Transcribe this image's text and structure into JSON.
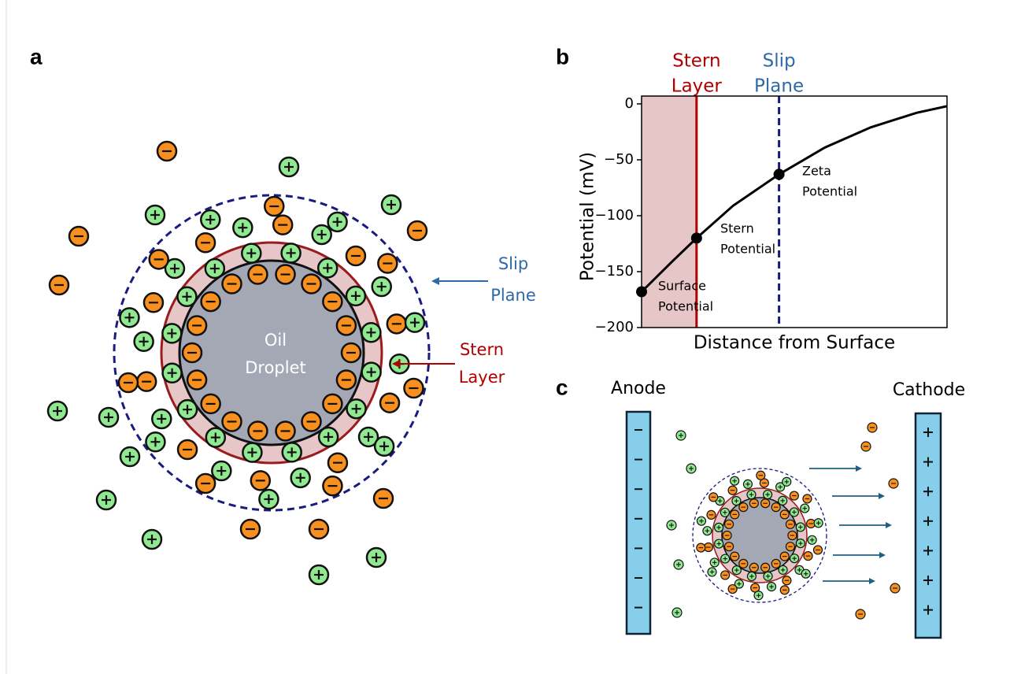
{
  "panel_a": {
    "label": "a",
    "droplet": [
      "Oil",
      "Droplet"
    ],
    "slip_plane": [
      "Slip",
      "Plane"
    ],
    "stern_layer": [
      "Stern",
      "Layer"
    ]
  },
  "panel_b": {
    "label": "b",
    "chart_data": {
      "type": "line",
      "x_label": "Distance from Surface",
      "y_label": "Potential (mV)",
      "xlim": [
        0,
        10
      ],
      "ylim": [
        -200,
        7
      ],
      "yticks": [
        0,
        {
          "value": -50,
          "label": "−50"
        },
        {
          "value": -100,
          "label": "−100"
        },
        {
          "value": -150,
          "label": "−150"
        },
        {
          "value": -200,
          "label": "−200"
        }
      ],
      "x": [
        0,
        1,
        1.8,
        3,
        4.5,
        6,
        7.5,
        9,
        10
      ],
      "values": [
        -168,
        -141,
        -120,
        -91,
        -63,
        -39,
        -21,
        -8,
        -2
      ],
      "color": "#000000",
      "points": [
        {
          "x": 0,
          "value": -168,
          "label": [
            "Surface",
            "Potential"
          ]
        },
        {
          "x": 1.8,
          "value": -120,
          "label": [
            "Stern",
            "Potential"
          ]
        },
        {
          "x": 4.5,
          "value": -63,
          "label": [
            "Zeta",
            "Potential"
          ]
        }
      ],
      "vlines": [
        {
          "x": 1.8,
          "label": [
            "Stern",
            "Layer"
          ],
          "color": "#b00000",
          "label_color": "#b00000",
          "style": "solid",
          "shade": "#e6c6c6"
        },
        {
          "x": 4.5,
          "label": [
            "Slip",
            "Plane"
          ],
          "color": "#1a1a80",
          "label_color": "#2e6aa8",
          "style": "dashed"
        }
      ]
    }
  },
  "panel_c": {
    "label": "c",
    "anode": "Anode",
    "cathode": "Cathode"
  }
}
